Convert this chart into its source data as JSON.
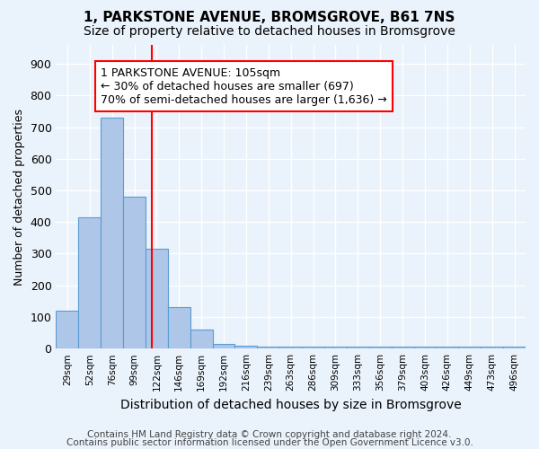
{
  "title": "1, PARKSTONE AVENUE, BROMSGROVE, B61 7NS",
  "subtitle": "Size of property relative to detached houses in Bromsgrove",
  "xlabel": "Distribution of detached houses by size in Bromsgrove",
  "ylabel": "Number of detached properties",
  "footnote1": "Contains HM Land Registry data © Crown copyright and database right 2024.",
  "footnote2": "Contains public sector information licensed under the Open Government Licence v3.0.",
  "bin_labels": [
    "29sqm",
    "52sqm",
    "76sqm",
    "99sqm",
    "122sqm",
    "146sqm",
    "169sqm",
    "192sqm",
    "216sqm",
    "239sqm",
    "263sqm",
    "286sqm",
    "309sqm",
    "333sqm",
    "356sqm",
    "379sqm",
    "403sqm",
    "426sqm",
    "449sqm",
    "473sqm",
    "496sqm"
  ],
  "bar_heights": [
    120,
    415,
    730,
    480,
    315,
    130,
    60,
    15,
    8,
    5,
    5,
    5,
    5,
    5,
    5,
    5,
    5,
    5,
    5,
    5,
    5
  ],
  "bar_color": "#aec6e8",
  "bar_edge_color": "#5b9bd5",
  "ylim": [
    0,
    960
  ],
  "yticks": [
    0,
    100,
    200,
    300,
    400,
    500,
    600,
    700,
    800,
    900
  ],
  "red_line_x": 3.77,
  "annotation_text_line1": "1 PARKSTONE AVENUE: 105sqm",
  "annotation_text_line2": "← 30% of detached houses are smaller (697)",
  "annotation_text_line3": "70% of semi-detached houses are larger (1,636) →",
  "bg_color": "#eaf2fb",
  "plot_bg_color": "#eaf2fb",
  "grid_color": "#ffffff",
  "title_fontsize": 11,
  "subtitle_fontsize": 10,
  "xlabel_fontsize": 10,
  "ylabel_fontsize": 9,
  "annotation_fontsize": 9,
  "footnote_fontsize": 7.5
}
